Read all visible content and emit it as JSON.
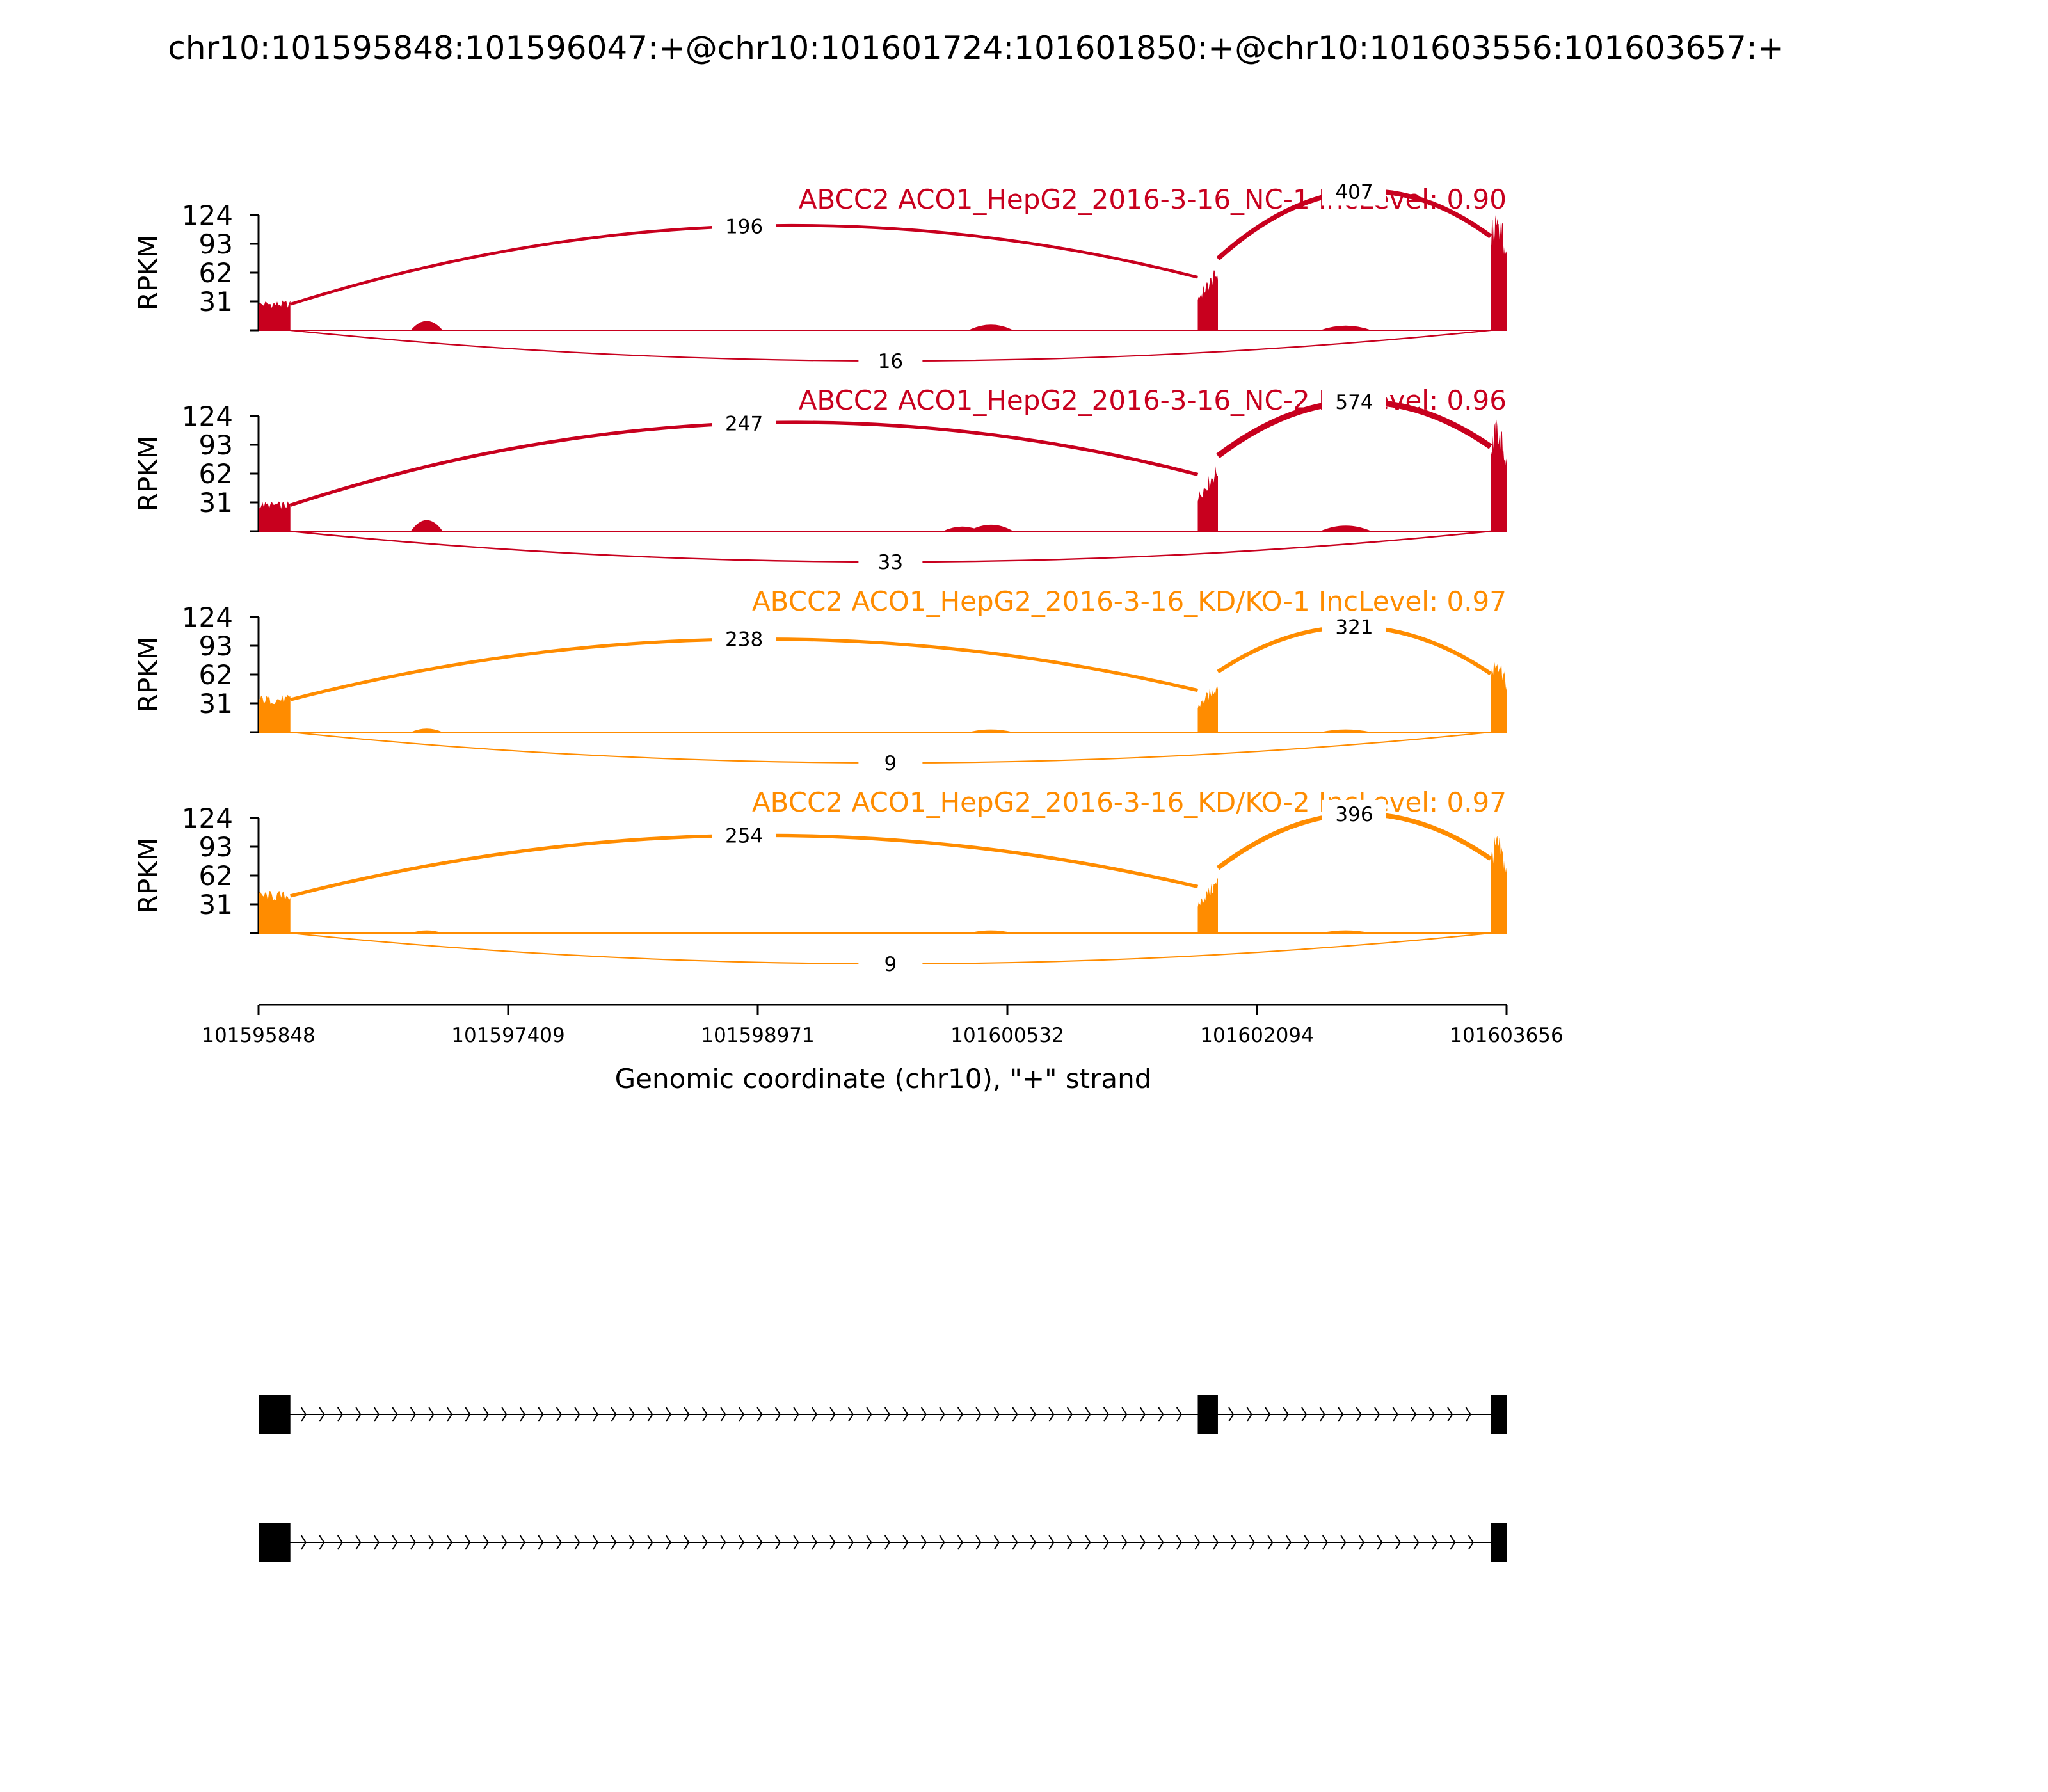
{
  "chart_data": {
    "type": "sashimi",
    "title": "chr10:101595848:101596047:+@chr10:101601724:101601850:+@chr10:101603556:101603657:+",
    "xlabel": "Genomic coordinate (chr10), \"+\" strand",
    "ylabel": "RPKM",
    "xlim": [
      101595848,
      101603656
    ],
    "ylim": [
      0,
      124
    ],
    "x_ticks": [
      "101595848",
      "101597409",
      "101598971",
      "101600532",
      "101602094",
      "101603656"
    ],
    "y_ticks": [
      "124",
      "93",
      "62",
      "31"
    ],
    "exons": [
      {
        "start": 101595848,
        "end": 101596047
      },
      {
        "start": 101601724,
        "end": 101601850
      },
      {
        "start": 101603556,
        "end": 101603657
      }
    ],
    "series": [
      {
        "name": "ABCC2 ACO1_HepG2_2016-3-16_NC-1 IncLevel: 0.90",
        "color": "#c8001e",
        "exon_coverage": [
          28,
          62,
          106
        ],
        "junctions": [
          {
            "from": 101596047,
            "to": 101601724,
            "count": "196",
            "side": "above"
          },
          {
            "from": 101601850,
            "to": 101603556,
            "count": "407",
            "side": "above"
          },
          {
            "from": 101596047,
            "to": 101603556,
            "count": "16",
            "side": "below"
          }
        ]
      },
      {
        "name": "ABCC2 ACO1_HepG2_2016-3-16_NC-2 IncLevel: 0.96",
        "color": "#c8001e",
        "exon_coverage": [
          28,
          66,
          96
        ],
        "junctions": [
          {
            "from": 101596047,
            "to": 101601724,
            "count": "247",
            "side": "above"
          },
          {
            "from": 101601850,
            "to": 101603556,
            "count": "574",
            "side": "above"
          },
          {
            "from": 101596047,
            "to": 101603556,
            "count": "33",
            "side": "below"
          }
        ]
      },
      {
        "name": "ABCC2 ACO1_HepG2_2016-3-16_KD/KO-1 IncLevel: 0.97",
        "color": "#ff8c00",
        "exon_coverage": [
          35,
          50,
          68
        ],
        "junctions": [
          {
            "from": 101596047,
            "to": 101601724,
            "count": "238",
            "side": "above"
          },
          {
            "from": 101601850,
            "to": 101603556,
            "count": "321",
            "side": "above"
          },
          {
            "from": 101596047,
            "to": 101603556,
            "count": "9",
            "side": "below"
          }
        ]
      },
      {
        "name": "ABCC2 ACO1_HepG2_2016-3-16_KD/KO-2 IncLevel: 0.97",
        "color": "#ff8c00",
        "exon_coverage": [
          40,
          55,
          85
        ],
        "junctions": [
          {
            "from": 101596047,
            "to": 101601724,
            "count": "254",
            "side": "above"
          },
          {
            "from": 101601850,
            "to": 101603556,
            "count": "396",
            "side": "above"
          },
          {
            "from": 101596047,
            "to": 101603556,
            "count": "9",
            "side": "below"
          }
        ]
      }
    ],
    "isoforms": [
      {
        "exons": [
          0,
          1,
          2
        ]
      },
      {
        "exons": [
          0,
          2
        ]
      }
    ]
  }
}
